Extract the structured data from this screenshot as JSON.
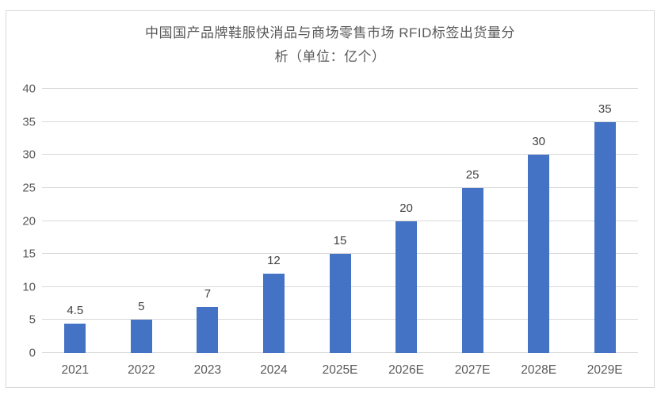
{
  "chart_data": {
    "type": "bar",
    "title": "中国国产品牌鞋服快消品与商场零售市场 RFID标签出货量分析（单位：亿个）",
    "title_lines": [
      "中国国产品牌鞋服快消品与商场零售市场 RFID标签出货量分",
      "析（单位：亿个）"
    ],
    "categories": [
      "2021",
      "2022",
      "2023",
      "2024",
      "2025E",
      "2026E",
      "2027E",
      "2028E",
      "2029E"
    ],
    "values": [
      4.5,
      5,
      7,
      12,
      15,
      20,
      25,
      30,
      35
    ],
    "data_labels": [
      "4.5",
      "5",
      "7",
      "12",
      "15",
      "20",
      "25",
      "30",
      "35"
    ],
    "y_ticks": [
      0,
      5,
      10,
      15,
      20,
      25,
      30,
      35,
      40
    ],
    "ylim": [
      0,
      40
    ],
    "xlabel": "",
    "ylabel": "",
    "grid": true,
    "legend_position": "none",
    "colors": {
      "bar": "#4472C4",
      "gridline": "#D9D9D9",
      "border": "#D9D9D9",
      "axis_text": "#595959",
      "title_text": "#595959",
      "data_label_text": "#404040",
      "background": "#FFFFFF"
    }
  }
}
